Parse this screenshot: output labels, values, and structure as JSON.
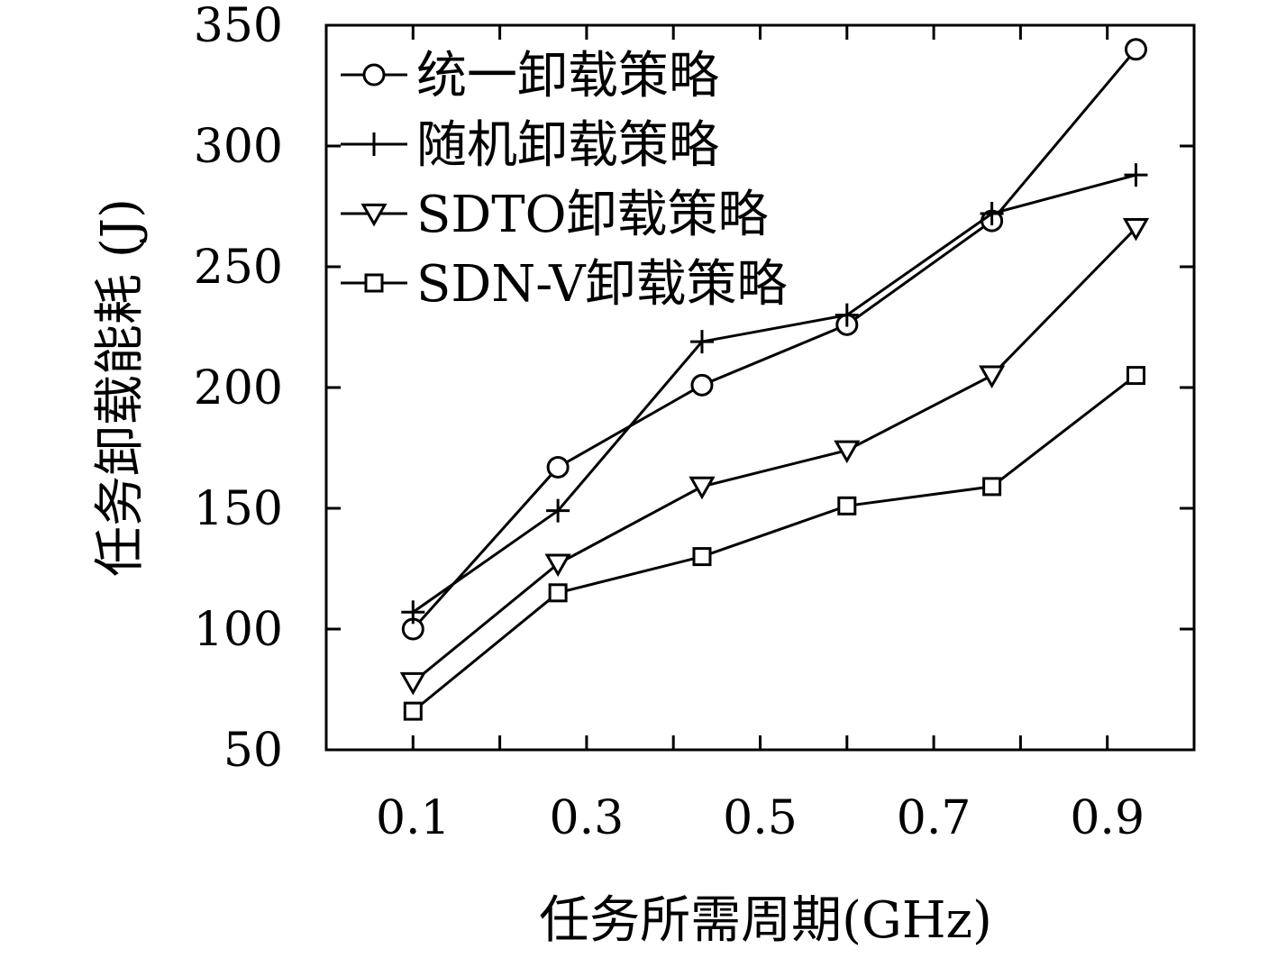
{
  "chart_data": {
    "type": "line",
    "xlabel": "任务所需周期(GHz)",
    "ylabel": "任务卸载能耗 (J)",
    "ylim": [
      50,
      350
    ],
    "xlim": [
      0.0,
      1.0
    ],
    "xticks": [
      0.1,
      0.2,
      0.3,
      0.4,
      0.5,
      0.6,
      0.7,
      0.8,
      0.9
    ],
    "xtick_labels": [
      "0.1",
      "0.3",
      "0.5",
      "0.7",
      "0.9"
    ],
    "xtick_label_values": [
      0.1,
      0.3,
      0.5,
      0.7,
      0.9
    ],
    "yticks": [
      50,
      100,
      150,
      200,
      250,
      300,
      350
    ],
    "ytick_labels": [
      "50",
      "100",
      "150",
      "200",
      "250",
      "300",
      "350"
    ],
    "legend_position": "top-left",
    "grid": false,
    "x": [
      0.1,
      0.267,
      0.433,
      0.6,
      0.767,
      0.933
    ],
    "series": [
      {
        "name": "统一卸载策略",
        "marker": "circle",
        "values": [
          100,
          167,
          201,
          226,
          269,
          340
        ]
      },
      {
        "name": "随机卸载策略",
        "marker": "plus",
        "values": [
          107,
          149,
          219,
          230,
          272,
          288
        ]
      },
      {
        "name": "SDTO卸载策略",
        "marker": "triangle-down",
        "values": [
          78,
          127,
          159,
          174,
          205,
          266
        ]
      },
      {
        "name": "SDN-V卸载策略",
        "marker": "square",
        "values": [
          66,
          115,
          130,
          151,
          159,
          205
        ]
      }
    ]
  }
}
